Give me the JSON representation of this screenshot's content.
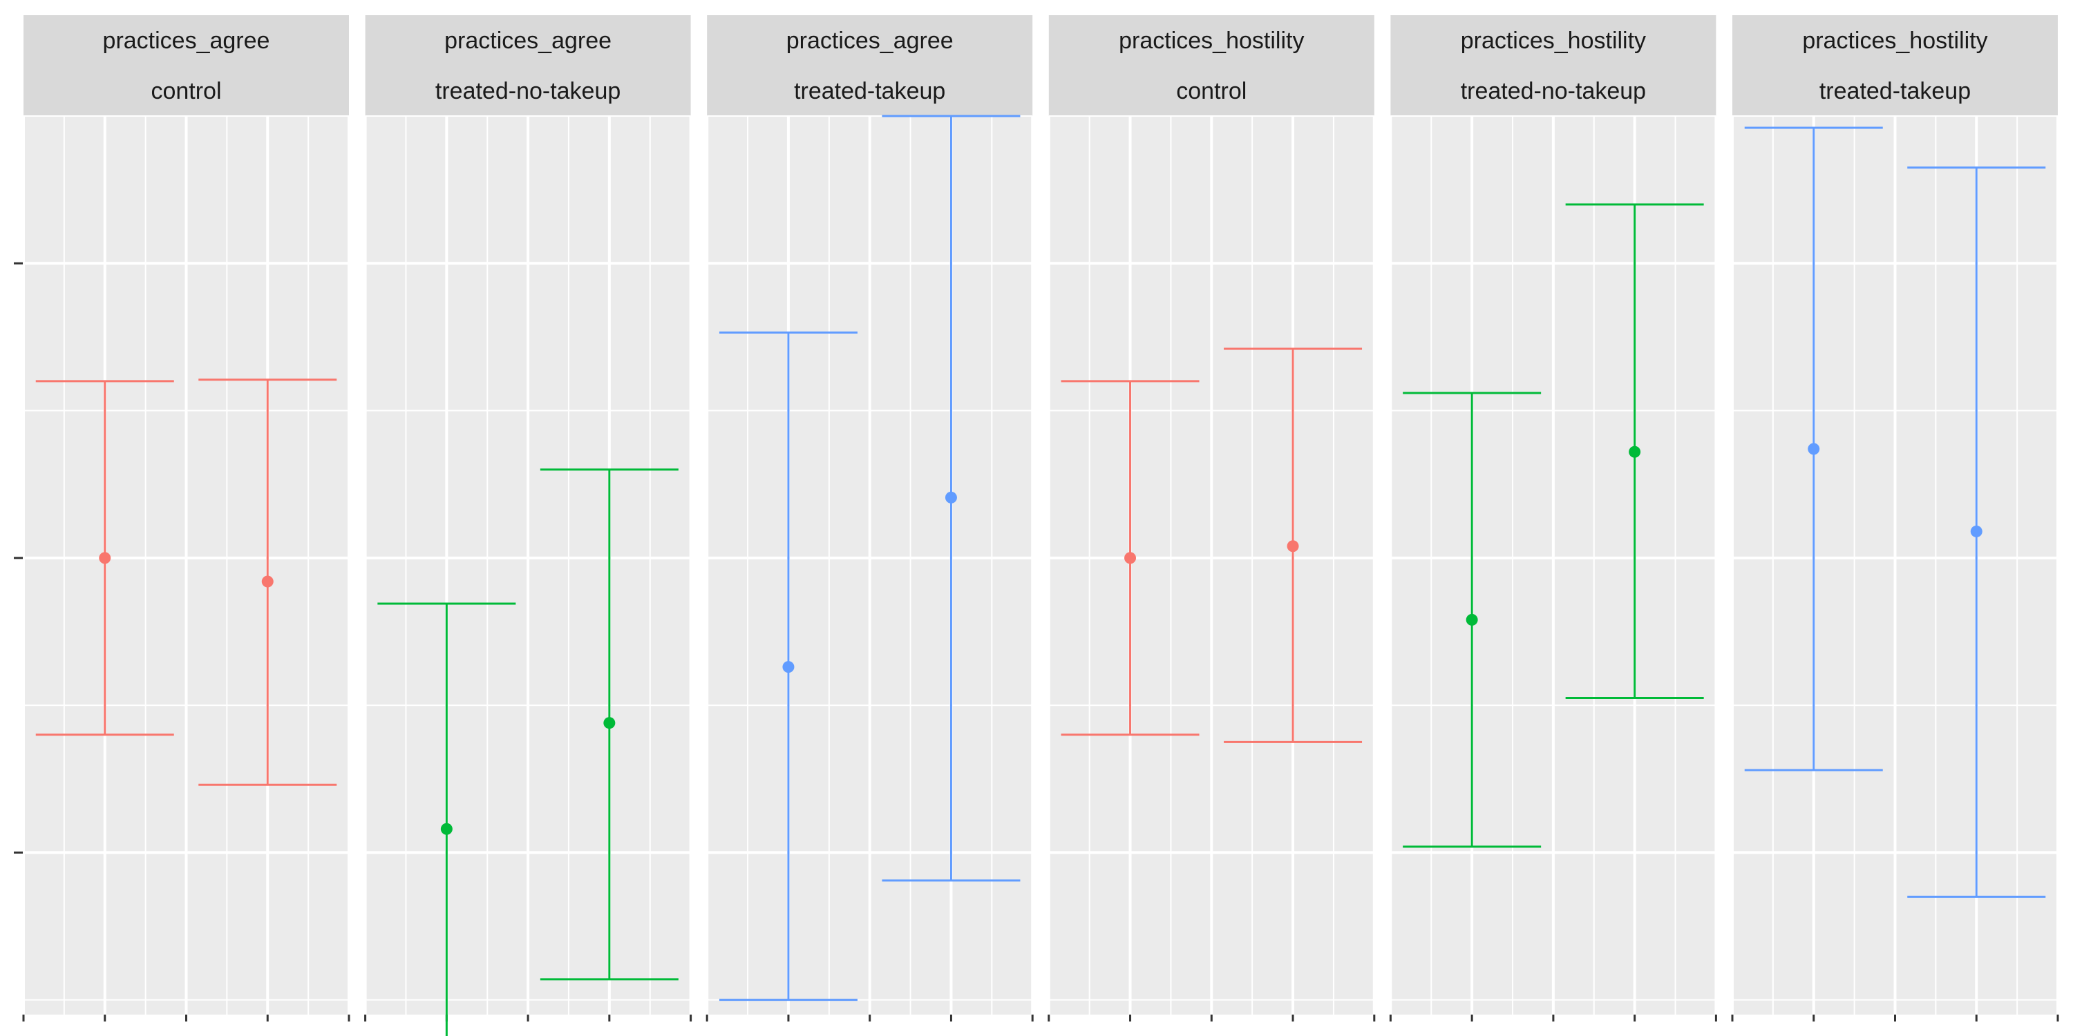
{
  "chart_data": {
    "type": "errorbar",
    "grid": true,
    "legend": "none",
    "y_ticks": [
      -1,
      0,
      1
    ],
    "ylim": [
      -1.55,
      1.5
    ],
    "x_positions": [
      1,
      2
    ],
    "xlim": [
      0.5,
      2.5
    ],
    "panels": [
      {
        "strip_top": "practices_agree",
        "strip_bottom": "control",
        "color": "#F8766D",
        "points": [
          {
            "x": 1,
            "y": 0.0,
            "lower": -0.6,
            "upper": 0.6
          },
          {
            "x": 2,
            "y": -0.08,
            "lower": -0.77,
            "upper": 0.605
          }
        ]
      },
      {
        "strip_top": "practices_agree",
        "strip_bottom": "treated-no-takeup",
        "color": "#00BA38",
        "points": [
          {
            "x": 1,
            "y": -0.92,
            "lower": -1.69,
            "upper": -0.155
          },
          {
            "x": 2,
            "y": -0.56,
            "lower": -1.43,
            "upper": 0.3
          }
        ]
      },
      {
        "strip_top": "practices_agree",
        "strip_bottom": "treated-takeup",
        "color": "#619CFF",
        "points": [
          {
            "x": 1,
            "y": -0.37,
            "lower": -1.5,
            "upper": 0.765
          },
          {
            "x": 2,
            "y": 0.205,
            "lower": -1.095,
            "upper": 1.5
          }
        ]
      },
      {
        "strip_top": "practices_hostility",
        "strip_bottom": "control",
        "color": "#F8766D",
        "points": [
          {
            "x": 1,
            "y": 0.0,
            "lower": -0.6,
            "upper": 0.6
          },
          {
            "x": 2,
            "y": 0.04,
            "lower": -0.625,
            "upper": 0.71
          }
        ]
      },
      {
        "strip_top": "practices_hostility",
        "strip_bottom": "treated-no-takeup",
        "color": "#00BA38",
        "points": [
          {
            "x": 1,
            "y": -0.21,
            "lower": -0.98,
            "upper": 0.56
          },
          {
            "x": 2,
            "y": 0.36,
            "lower": -0.475,
            "upper": 1.2
          }
        ]
      },
      {
        "strip_top": "practices_hostility",
        "strip_bottom": "treated-takeup",
        "color": "#619CFF",
        "points": [
          {
            "x": 1,
            "y": 0.37,
            "lower": -0.72,
            "upper": 1.46
          },
          {
            "x": 2,
            "y": 0.09,
            "lower": -1.15,
            "upper": 1.325
          }
        ]
      }
    ]
  }
}
